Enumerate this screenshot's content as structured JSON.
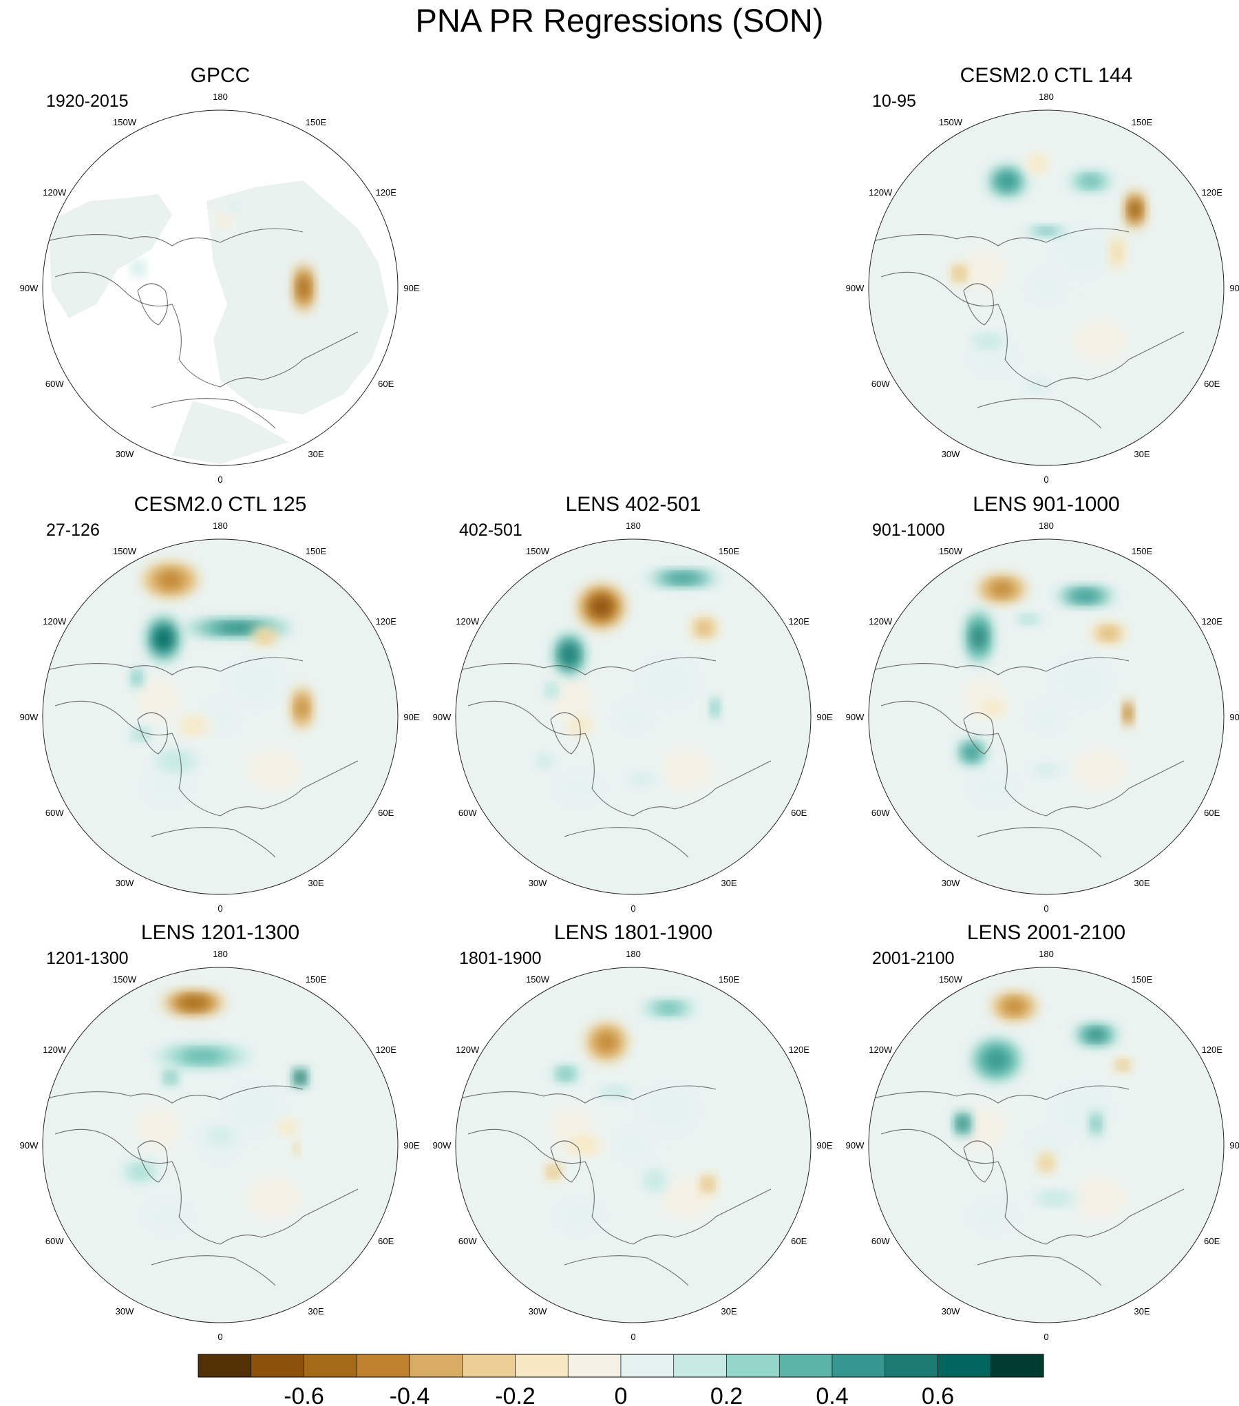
{
  "title": "PNA PR Regressions (SON)",
  "panels": [
    {
      "title": "GPCC",
      "years": "1920-2015",
      "masked": true,
      "col": 0,
      "row": 0,
      "features": [
        [
          0.02,
          0.38,
          0.05,
          0.05,
          -0.12
        ],
        [
          0.08,
          0.46,
          0.05,
          0.04,
          0.12
        ],
        [
          -0.46,
          0.11,
          0.04,
          0.05,
          0.18
        ],
        [
          0.47,
          0.0,
          0.06,
          0.14,
          -0.55
        ]
      ]
    },
    {
      "title": "CESM2.0 CTL 144",
      "years": "10-95",
      "masked": false,
      "col": 2,
      "row": 0,
      "features": [
        [
          -0.22,
          0.6,
          0.12,
          0.1,
          0.42
        ],
        [
          0.25,
          0.6,
          0.13,
          0.06,
          0.36
        ],
        [
          -0.05,
          0.7,
          0.07,
          0.06,
          -0.2
        ],
        [
          0.5,
          0.44,
          0.06,
          0.11,
          -0.65
        ],
        [
          -0.49,
          0.08,
          0.05,
          0.06,
          -0.35
        ],
        [
          -0.33,
          -0.3,
          0.12,
          0.05,
          0.15
        ],
        [
          0.4,
          0.2,
          0.04,
          0.1,
          -0.25
        ],
        [
          0.0,
          0.32,
          0.12,
          0.03,
          0.35
        ],
        [
          -0.05,
          -0.55,
          0.1,
          0.05,
          0.12
        ]
      ]
    },
    {
      "title": "CESM2.0 CTL 125",
      "years": "27-126",
      "masked": false,
      "col": 0,
      "row": 1,
      "features": [
        [
          -0.28,
          0.77,
          0.16,
          0.1,
          -0.45
        ],
        [
          -0.32,
          0.44,
          0.1,
          0.13,
          0.62
        ],
        [
          0.1,
          0.5,
          0.3,
          0.05,
          0.5
        ],
        [
          0.46,
          0.05,
          0.06,
          0.12,
          -0.5
        ],
        [
          -0.47,
          0.22,
          0.04,
          0.06,
          0.3
        ],
        [
          -0.25,
          -0.25,
          0.15,
          0.08,
          0.15
        ],
        [
          -0.15,
          -0.05,
          0.1,
          0.06,
          -0.2
        ],
        [
          0.25,
          0.45,
          0.07,
          0.05,
          -0.3
        ],
        [
          -0.45,
          -0.1,
          0.08,
          0.05,
          0.2
        ]
      ]
    },
    {
      "title": "LENS 402-501",
      "years": "402-501",
      "masked": false,
      "col": 1,
      "row": 1,
      "features": [
        [
          -0.18,
          0.62,
          0.14,
          0.13,
          -0.62
        ],
        [
          -0.36,
          0.35,
          0.09,
          0.12,
          0.55
        ],
        [
          0.28,
          0.78,
          0.22,
          0.05,
          0.4
        ],
        [
          0.4,
          0.5,
          0.08,
          0.07,
          -0.35
        ],
        [
          -0.46,
          0.15,
          0.05,
          0.06,
          0.22
        ],
        [
          0.46,
          0.05,
          0.03,
          0.07,
          0.3
        ],
        [
          -0.3,
          -0.05,
          0.08,
          0.06,
          -0.2
        ],
        [
          -0.5,
          -0.25,
          0.05,
          0.05,
          0.15
        ],
        [
          0.05,
          -0.35,
          0.12,
          0.05,
          0.1
        ]
      ]
    },
    {
      "title": "LENS 901-1000",
      "years": "901-1000",
      "masked": false,
      "col": 2,
      "row": 1,
      "features": [
        [
          -0.25,
          0.72,
          0.14,
          0.08,
          -0.45
        ],
        [
          -0.38,
          0.45,
          0.08,
          0.15,
          0.5
        ],
        [
          0.22,
          0.68,
          0.18,
          0.06,
          0.42
        ],
        [
          0.35,
          0.47,
          0.1,
          0.06,
          -0.35
        ],
        [
          0.46,
          0.02,
          0.03,
          0.08,
          -0.55
        ],
        [
          -0.42,
          -0.2,
          0.09,
          0.08,
          0.4
        ],
        [
          -0.1,
          0.55,
          0.1,
          0.04,
          0.2
        ],
        [
          0.0,
          -0.3,
          0.12,
          0.05,
          0.12
        ],
        [
          -0.3,
          0.05,
          0.08,
          0.05,
          -0.15
        ]
      ]
    },
    {
      "title": "LENS 1201-1300",
      "years": "1201-1300",
      "masked": false,
      "col": 0,
      "row": 2,
      "features": [
        [
          -0.15,
          0.8,
          0.18,
          0.07,
          -0.55
        ],
        [
          -0.1,
          0.5,
          0.28,
          0.07,
          0.35
        ],
        [
          0.45,
          0.38,
          0.04,
          0.05,
          0.7
        ],
        [
          -0.28,
          0.38,
          0.05,
          0.05,
          0.3
        ],
        [
          0.38,
          0.1,
          0.06,
          0.05,
          -0.2
        ],
        [
          -0.45,
          -0.15,
          0.1,
          0.06,
          0.25
        ],
        [
          0.43,
          -0.02,
          0.02,
          0.04,
          -0.4
        ],
        [
          0.0,
          0.05,
          0.15,
          0.08,
          0.1
        ]
      ]
    },
    {
      "title": "LENS 1801-1900",
      "years": "1801-1900",
      "masked": false,
      "col": 1,
      "row": 2,
      "features": [
        [
          -0.15,
          0.58,
          0.12,
          0.11,
          -0.45
        ],
        [
          0.2,
          0.77,
          0.16,
          0.05,
          0.32
        ],
        [
          -0.38,
          0.4,
          0.08,
          0.05,
          0.3
        ],
        [
          -0.45,
          -0.15,
          0.05,
          0.05,
          -0.35
        ],
        [
          0.42,
          -0.22,
          0.05,
          0.06,
          -0.4
        ],
        [
          0.12,
          -0.2,
          0.08,
          0.08,
          0.15
        ],
        [
          -0.28,
          0.0,
          0.12,
          0.06,
          -0.15
        ],
        [
          -0.1,
          0.3,
          0.12,
          0.04,
          0.15
        ]
      ]
    },
    {
      "title": "LENS 2001-2100",
      "years": "2001-2100",
      "masked": false,
      "col": 2,
      "row": 2,
      "features": [
        [
          -0.18,
          0.78,
          0.13,
          0.08,
          -0.48
        ],
        [
          -0.28,
          0.48,
          0.14,
          0.12,
          0.45
        ],
        [
          0.28,
          0.62,
          0.12,
          0.06,
          0.5
        ],
        [
          0.43,
          0.45,
          0.05,
          0.04,
          -0.35
        ],
        [
          -0.47,
          0.12,
          0.05,
          0.07,
          0.55
        ],
        [
          0.28,
          0.12,
          0.04,
          0.08,
          0.3
        ],
        [
          0.05,
          -0.3,
          0.15,
          0.05,
          0.15
        ],
        [
          0.0,
          -0.1,
          0.05,
          0.06,
          -0.3
        ]
      ]
    }
  ],
  "lon_labels": [
    "180",
    "150E",
    "120E",
    "90E",
    "60E",
    "30E",
    "0",
    "30W",
    "60W",
    "90W",
    "120W",
    "150W"
  ],
  "colorbar": {
    "colors": [
      "#543005",
      "#8c510a",
      "#a46a17",
      "#bf812d",
      "#d8ac63",
      "#ebcf96",
      "#f6e8c3",
      "#f5f1e6",
      "#e6f2f1",
      "#c7eae5",
      "#95d6cb",
      "#5ab4a8",
      "#35978f",
      "#1b7b72",
      "#01665e",
      "#003c30"
    ],
    "labels": [
      "-0.6",
      "-0.4",
      "-0.2",
      "0",
      "0.2",
      "0.4",
      "0.6"
    ],
    "label_values": [
      -0.6,
      -0.4,
      -0.2,
      0,
      0.2,
      0.4,
      0.6
    ],
    "min": -0.8,
    "max": 0.8
  }
}
